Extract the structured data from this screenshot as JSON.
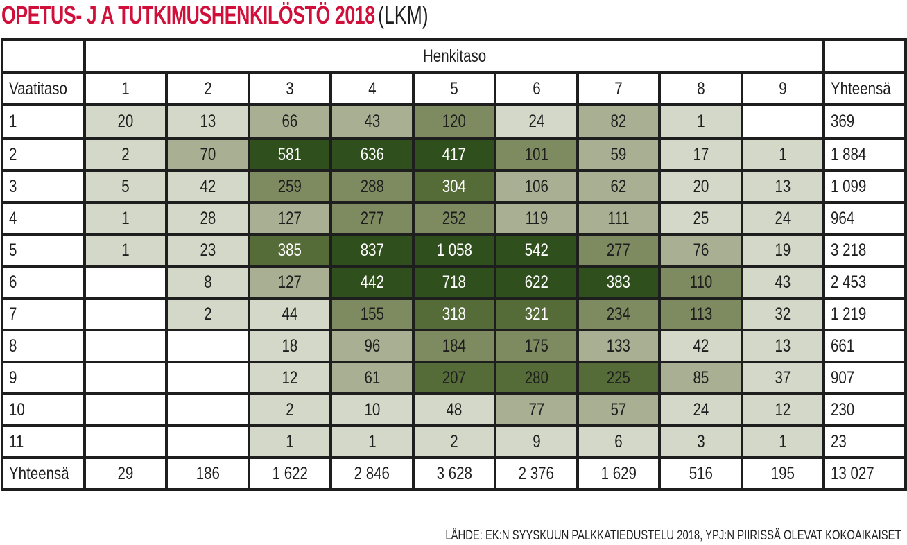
{
  "title": {
    "main": "OPETUS- J A TUTKIMUSHENKILÖSTÖ 2018",
    "unit": "(LKM)"
  },
  "table": {
    "col_group_header": "Henkitaso",
    "row_header_label": "Vaatitaso",
    "columns": [
      "1",
      "2",
      "3",
      "4",
      "5",
      "6",
      "7",
      "8",
      "9"
    ],
    "total_label": "Yhteensä",
    "rows": [
      {
        "label": "1",
        "cells": [
          "20",
          "13",
          "66",
          "43",
          "120",
          "24",
          "82",
          "1",
          ""
        ],
        "levels": [
          1,
          1,
          2,
          2,
          3,
          1,
          2,
          1,
          0
        ],
        "total": "369"
      },
      {
        "label": "2",
        "cells": [
          "2",
          "70",
          "581",
          "636",
          "417",
          "101",
          "59",
          "17",
          "1"
        ],
        "levels": [
          1,
          2,
          5,
          5,
          5,
          3,
          2,
          1,
          1
        ],
        "total": "1 884"
      },
      {
        "label": "3",
        "cells": [
          "5",
          "42",
          "259",
          "288",
          "304",
          "106",
          "62",
          "20",
          "13"
        ],
        "levels": [
          1,
          1,
          3,
          3,
          4,
          2,
          2,
          1,
          1
        ],
        "total": "1 099"
      },
      {
        "label": "4",
        "cells": [
          "1",
          "28",
          "127",
          "277",
          "252",
          "119",
          "111",
          "25",
          "24"
        ],
        "levels": [
          1,
          1,
          2,
          3,
          3,
          2,
          2,
          1,
          1
        ],
        "total": "964"
      },
      {
        "label": "5",
        "cells": [
          "1",
          "23",
          "385",
          "837",
          "1 058",
          "542",
          "277",
          "76",
          "19"
        ],
        "levels": [
          1,
          1,
          4,
          5,
          5,
          5,
          3,
          2,
          1
        ],
        "total": "3 218"
      },
      {
        "label": "6",
        "cells": [
          "",
          "8",
          "127",
          "442",
          "718",
          "622",
          "383",
          "110",
          "43"
        ],
        "levels": [
          0,
          1,
          2,
          5,
          5,
          5,
          5,
          3,
          1
        ],
        "total": "2 453"
      },
      {
        "label": "7",
        "cells": [
          "",
          "2",
          "44",
          "155",
          "318",
          "321",
          "234",
          "113",
          "32"
        ],
        "levels": [
          0,
          1,
          1,
          3,
          4,
          4,
          3,
          3,
          1
        ],
        "total": "1 219"
      },
      {
        "label": "8",
        "cells": [
          "",
          "",
          "18",
          "96",
          "184",
          "175",
          "133",
          "42",
          "13"
        ],
        "levels": [
          0,
          0,
          1,
          2,
          3,
          3,
          2,
          1,
          1
        ],
        "total": "661"
      },
      {
        "label": "9",
        "cells": [
          "",
          "",
          "12",
          "61",
          "207",
          "280",
          "225",
          "85",
          "37"
        ],
        "levels": [
          0,
          0,
          1,
          2,
          4,
          4,
          4,
          2,
          1
        ],
        "total": "907"
      },
      {
        "label": "10",
        "cells": [
          "",
          "",
          "2",
          "10",
          "48",
          "77",
          "57",
          "24",
          "12"
        ],
        "levels": [
          0,
          0,
          1,
          1,
          1,
          2,
          2,
          1,
          1
        ],
        "total": "230"
      },
      {
        "label": "11",
        "cells": [
          "",
          "",
          "1",
          "1",
          "2",
          "9",
          "6",
          "3",
          "1"
        ],
        "levels": [
          0,
          0,
          1,
          1,
          1,
          1,
          1,
          1,
          1
        ],
        "total": "23"
      }
    ],
    "white_text_cells": [
      [
        1,
        2
      ],
      [
        1,
        3
      ],
      [
        1,
        4
      ],
      [
        2,
        4
      ],
      [
        4,
        2
      ],
      [
        4,
        3
      ],
      [
        4,
        4
      ],
      [
        4,
        5
      ],
      [
        5,
        3
      ],
      [
        5,
        4
      ],
      [
        5,
        5
      ],
      [
        5,
        6
      ],
      [
        6,
        4
      ],
      [
        6,
        5
      ]
    ],
    "totals_row": {
      "label": "Yhteensä",
      "cells": [
        "29",
        "186",
        "1 622",
        "2 846",
        "3 628",
        "2 376",
        "1 629",
        "516",
        "195"
      ],
      "total": "13 027"
    }
  },
  "source": "LÄHDE: EK:N SYYSKUUN PALKKATIEDUSTELU 2018, YPJ:N PIIRISSÄ OLEVAT KOKOAIKAISET",
  "colors": {
    "title_red": "#d0103a",
    "level_0": "#ffffff",
    "level_1": "#d3d8c9",
    "level_2": "#a9af93",
    "level_3": "#7e8b60",
    "level_4": "#566c38",
    "level_5": "#2f4f1c",
    "border": "#1e1e1e"
  },
  "chart_data": {
    "type": "heatmap",
    "title": "OPETUS- J A TUTKIMUSHENKILÖSTÖ 2018 (LKM)",
    "xlabel": "Henkitaso",
    "ylabel": "Vaatitaso",
    "x": [
      1,
      2,
      3,
      4,
      5,
      6,
      7,
      8,
      9
    ],
    "y": [
      1,
      2,
      3,
      4,
      5,
      6,
      7,
      8,
      9,
      10,
      11
    ],
    "values": [
      [
        20,
        13,
        66,
        43,
        120,
        24,
        82,
        1,
        null
      ],
      [
        2,
        70,
        581,
        636,
        417,
        101,
        59,
        17,
        1
      ],
      [
        5,
        42,
        259,
        288,
        304,
        106,
        62,
        20,
        13
      ],
      [
        1,
        28,
        127,
        277,
        252,
        119,
        111,
        25,
        24
      ],
      [
        1,
        23,
        385,
        837,
        1058,
        542,
        277,
        76,
        19
      ],
      [
        null,
        8,
        127,
        442,
        718,
        622,
        383,
        110,
        43
      ],
      [
        null,
        2,
        44,
        155,
        318,
        321,
        234,
        113,
        32
      ],
      [
        null,
        null,
        18,
        96,
        184,
        175,
        133,
        42,
        13
      ],
      [
        null,
        null,
        12,
        61,
        207,
        280,
        225,
        85,
        37
      ],
      [
        null,
        null,
        2,
        10,
        48,
        77,
        57,
        24,
        12
      ],
      [
        null,
        null,
        1,
        1,
        2,
        9,
        6,
        3,
        1
      ]
    ],
    "row_totals": [
      369,
      1884,
      1099,
      964,
      3218,
      2453,
      1219,
      661,
      907,
      230,
      23
    ],
    "column_totals": [
      29,
      186,
      1622,
      2846,
      3628,
      2376,
      1629,
      516,
      195
    ],
    "grand_total": 13027,
    "source": "LÄHDE: EK:N SYYSKUUN PALKKATIEDUSTELU 2018, YPJ:N PIIRISSÄ OLEVAT KOKOAIKAISET"
  }
}
